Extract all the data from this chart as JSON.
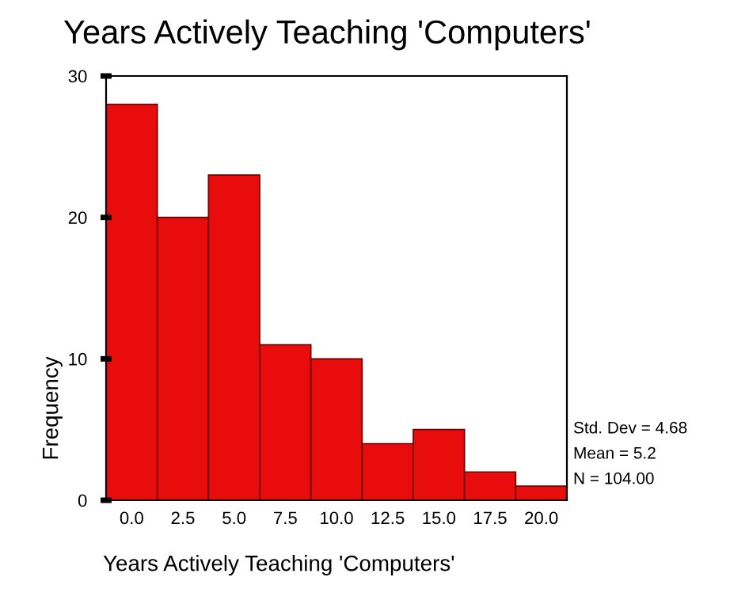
{
  "chart_data": {
    "type": "histogram",
    "title": "Years Actively Teaching 'Computers'",
    "xlabel": "Years Actively Teaching 'Computers'",
    "ylabel": "Frequency",
    "bins": [
      -1.25,
      1.25,
      3.75,
      6.25,
      8.75,
      11.25,
      13.75,
      16.25,
      18.75,
      21.25
    ],
    "values": [
      28,
      20,
      23,
      11,
      10,
      4,
      5,
      2,
      1
    ],
    "color": "#e80c0c",
    "xlim": [
      -1.25,
      21.25
    ],
    "ylim": [
      0,
      30
    ],
    "xticks": [
      {
        "value": 0,
        "label": "0.0"
      },
      {
        "value": 2.5,
        "label": "2.5"
      },
      {
        "value": 5,
        "label": "5.0"
      },
      {
        "value": 7.5,
        "label": "7.5"
      },
      {
        "value": 10,
        "label": "10.0"
      },
      {
        "value": 12.5,
        "label": "12.5"
      },
      {
        "value": 15,
        "label": "15.0"
      },
      {
        "value": 17.5,
        "label": "17.5"
      },
      {
        "value": 20,
        "label": "20.0"
      }
    ],
    "yticks": [
      0,
      10,
      20,
      30
    ],
    "annotations": [
      "Std. Dev = 4.68",
      "Mean = 5.2",
      "N = 104.00"
    ],
    "grid": false,
    "legend": false
  }
}
